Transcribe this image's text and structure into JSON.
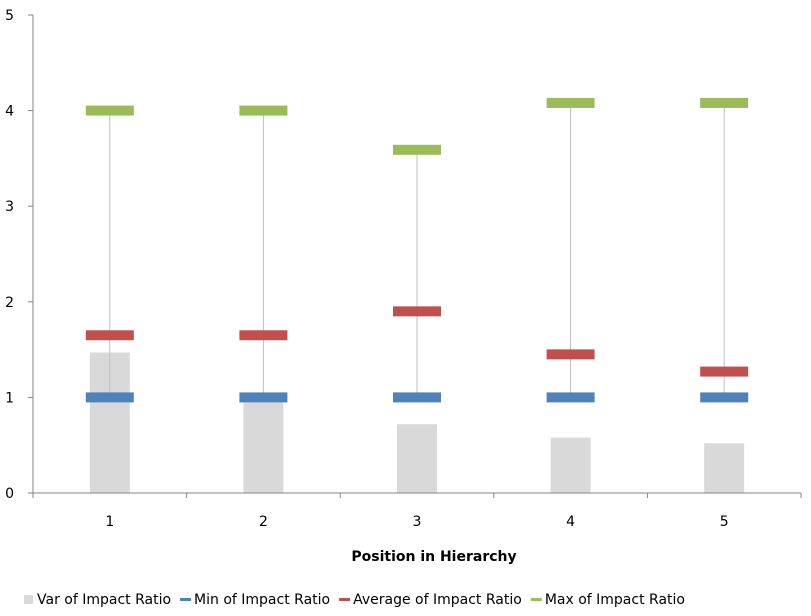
{
  "chart_data": {
    "type": "bar",
    "title": "",
    "xlabel": "Position in Hierarchy",
    "ylabel": "",
    "categories": [
      "1",
      "2",
      "3",
      "4",
      "5"
    ],
    "ylim": [
      0,
      5
    ],
    "yticks": [
      "0",
      "1",
      "2",
      "3",
      "4",
      "5"
    ],
    "grid": false,
    "legend_position": "bottom",
    "series": [
      {
        "name": "Var of Impact Ratio",
        "kind": "bar",
        "color": "#d9d9d9",
        "values": [
          1.47,
          1.0,
          0.72,
          0.58,
          0.52
        ]
      },
      {
        "name": "Min of Impact Ratio",
        "kind": "marker",
        "color": "#4f81bd",
        "values": [
          1.0,
          1.0,
          1.0,
          1.0,
          1.0
        ]
      },
      {
        "name": "Average of Impact Ratio",
        "kind": "marker",
        "color": "#c0504d",
        "values": [
          1.65,
          1.65,
          1.9,
          1.45,
          1.27
        ]
      },
      {
        "name": "Max of Impact Ratio",
        "kind": "marker",
        "color": "#9bbb59",
        "values": [
          4.0,
          4.0,
          3.59,
          4.08,
          4.08
        ]
      }
    ],
    "high_low_lines": true
  }
}
